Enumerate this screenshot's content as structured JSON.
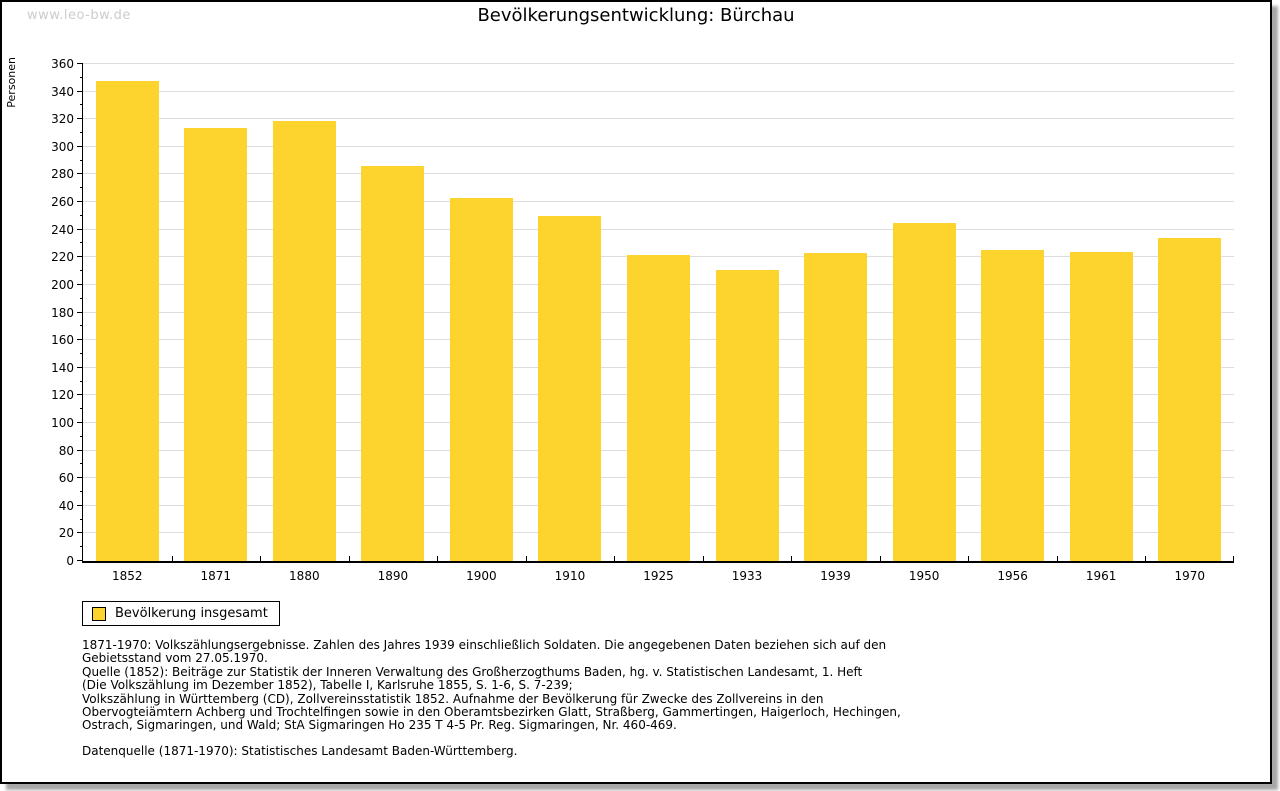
{
  "window": {
    "watermark": "www.leo-bw.de"
  },
  "title": "Bevölkerungsentwicklung: Bürchau",
  "chart_data": {
    "type": "bar",
    "title": "Bevölkerungsentwicklung: Bürchau",
    "ylabel": "Personen",
    "xlabel": "",
    "categories": [
      "1852",
      "1871",
      "1880",
      "1890",
      "1900",
      "1910",
      "1925",
      "1933",
      "1939",
      "1950",
      "1956",
      "1961",
      "1970"
    ],
    "values": [
      348,
      314,
      319,
      286,
      263,
      250,
      222,
      211,
      223,
      245,
      225,
      224,
      234
    ],
    "series_name": "Bevölkerung insgesamt",
    "ylim": [
      0,
      360
    ],
    "ytick_major": 20,
    "ytick_minor": 10,
    "grid": true,
    "bar_color": "#FCD42D",
    "axis_color": "#000000",
    "gridline_color": "#dddddd",
    "legend_position": "bottom-left"
  },
  "legend": {
    "label": "Bevölkerung insgesamt",
    "swatch_color": "#FCD42D"
  },
  "footer": {
    "lines": [
      "1871-1970: Volkszählungsergebnisse. Zahlen des Jahres 1939 einschließlich Soldaten. Die angegebenen Daten beziehen sich auf den",
      "Gebietsstand vom 27.05.1970.",
      "Quelle (1852): Beiträge zur Statistik der Inneren Verwaltung des Großherzogthums Baden, hg. v. Statistischen Landesamt, 1. Heft",
      "(Die Volkszählung im Dezember 1852), Tabelle I, Karlsruhe 1855, S. 1-6, S. 7-239;",
      "Volkszählung in Württemberg (CD), Zollvereinsstatistik 1852. Aufnahme der Bevölkerung für Zwecke des Zollvereins in den",
      "Obervogteiämtern Achberg und Trochtelfingen sowie in den Oberamtsbezirken Glatt, Straßberg, Gammertingen, Haigerloch, Hechingen,",
      "Ostrach, Sigmaringen, und Wald; StA Sigmaringen Ho 235 T 4-5 Pr. Reg. Sigmaringen, Nr. 460-469."
    ],
    "datasource_line": "Datenquelle (1871-1970): Statistisches Landesamt Baden-Württemberg."
  }
}
